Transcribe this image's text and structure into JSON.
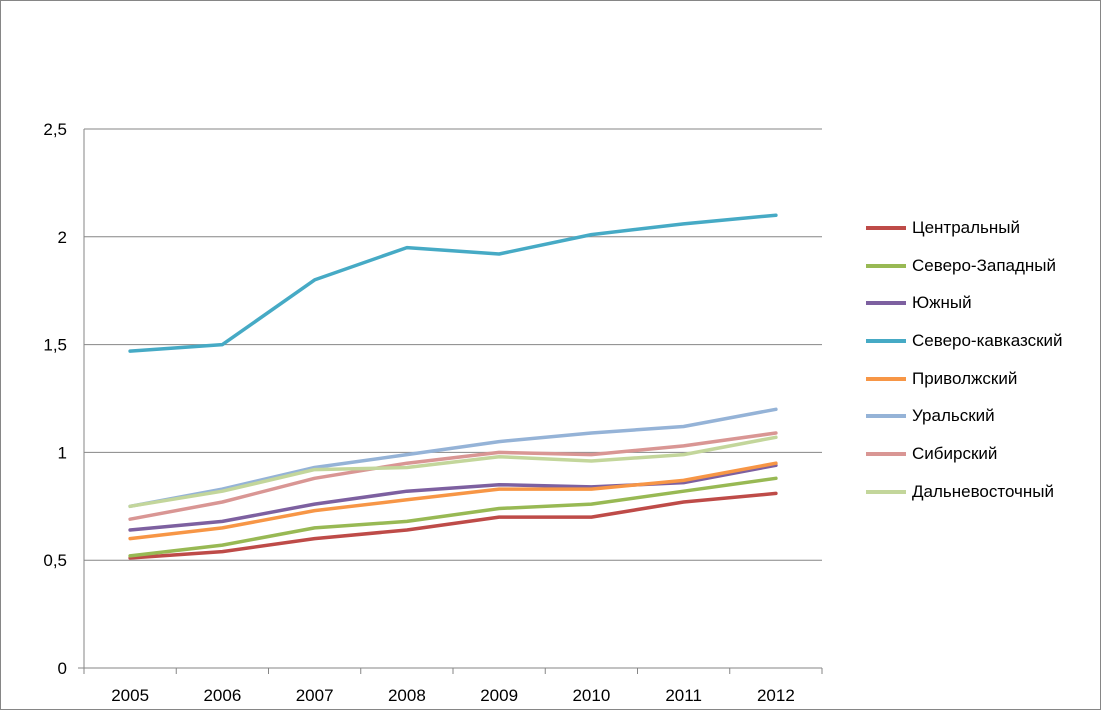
{
  "chart_data": {
    "type": "line",
    "title": "",
    "xlabel": "",
    "ylabel": "",
    "categories": [
      "2005",
      "2006",
      "2007",
      "2008",
      "2009",
      "2010",
      "2011",
      "2012"
    ],
    "ylim": [
      0,
      2.5
    ],
    "yticks": [
      0,
      0.5,
      1,
      1.5,
      2,
      2.5
    ],
    "ytick_labels": [
      "0",
      "0,5",
      "1",
      "1,5",
      "2",
      "2,5"
    ],
    "grid": "horizontal",
    "legend_position": "right",
    "series": [
      {
        "name": "Центральный",
        "color": "#BE4B48",
        "values": [
          0.51,
          0.54,
          0.6,
          0.64,
          0.7,
          0.7,
          0.77,
          0.81
        ]
      },
      {
        "name": "Северо-Западный",
        "color": "#98B954",
        "values": [
          0.52,
          0.57,
          0.65,
          0.68,
          0.74,
          0.76,
          0.82,
          0.88
        ]
      },
      {
        "name": "Южный",
        "color": "#7D60A0",
        "values": [
          0.64,
          0.68,
          0.76,
          0.82,
          0.85,
          0.84,
          0.86,
          0.94
        ]
      },
      {
        "name": "Северо-кавказский",
        "color": "#46AAC5",
        "values": [
          1.47,
          1.5,
          1.8,
          1.95,
          1.92,
          2.01,
          2.06,
          2.1
        ]
      },
      {
        "name": "Приволжский",
        "color": "#F79646",
        "values": [
          0.6,
          0.65,
          0.73,
          0.78,
          0.83,
          0.83,
          0.87,
          0.95
        ]
      },
      {
        "name": "Уральский",
        "color": "#95B3D7",
        "values": [
          0.75,
          0.83,
          0.93,
          0.99,
          1.05,
          1.09,
          1.12,
          1.2
        ]
      },
      {
        "name": "Сибирский",
        "color": "#D99694",
        "values": [
          0.69,
          0.77,
          0.88,
          0.95,
          1.0,
          0.99,
          1.03,
          1.09
        ]
      },
      {
        "name": "Дальневосточный",
        "color": "#C3D69B",
        "values": [
          0.75,
          0.82,
          0.92,
          0.93,
          0.98,
          0.96,
          0.99,
          1.07
        ]
      }
    ]
  }
}
